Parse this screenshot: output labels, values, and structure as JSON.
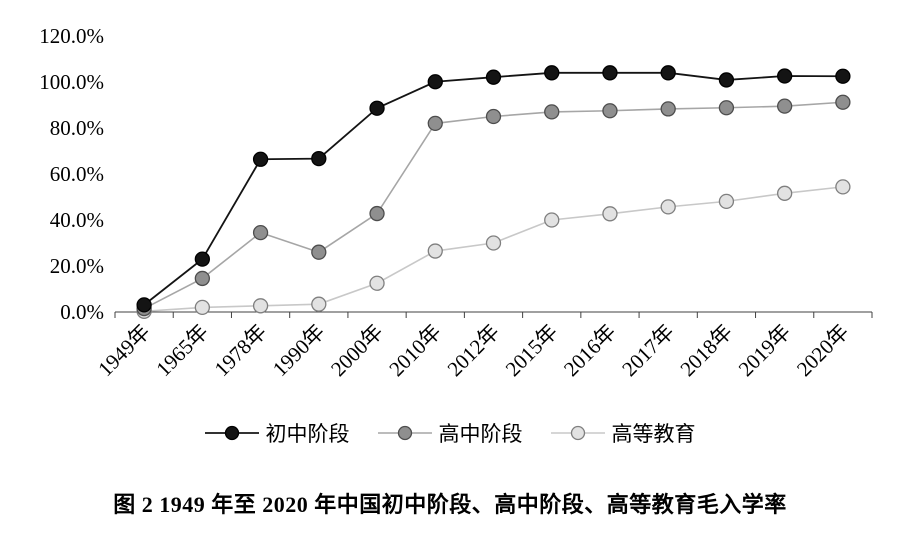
{
  "caption": "图 2  1949 年至 2020 年中国初中阶段、高中阶段、高等教育毛入学率",
  "chart_data": {
    "type": "line",
    "title": "",
    "xlabel": "",
    "ylabel": "",
    "grid": false,
    "legend_position": "bottom",
    "ylim": [
      0,
      120
    ],
    "ytick_step": 20,
    "ytick_labels": [
      "0.0%",
      "20.0%",
      "40.0%",
      "60.0%",
      "80.0%",
      "100.0%",
      "120.0%"
    ],
    "categories": [
      "1949年",
      "1965年",
      "1978年",
      "1990年",
      "2000年",
      "2010年",
      "2012年",
      "2015年",
      "2016年",
      "2017年",
      "2018年",
      "2019年",
      "2020年"
    ],
    "series": [
      {
        "name": "初中阶段",
        "line_color": "#141414",
        "line_width": 1.8,
        "marker_fill": "#141414",
        "marker_stroke": "#000000",
        "values": [
          3.1,
          23.0,
          66.4,
          66.7,
          88.6,
          100.1,
          102.1,
          104.0,
          104.0,
          104.0,
          100.9,
          102.6,
          102.5
        ]
      },
      {
        "name": "高中阶段",
        "line_color": "#a6a6a6",
        "line_width": 1.6,
        "marker_fill": "#8f8f8f",
        "marker_stroke": "#4d4d4d",
        "values": [
          1.5,
          14.6,
          34.5,
          26.0,
          42.8,
          82.0,
          85.0,
          87.0,
          87.5,
          88.3,
          88.8,
          89.5,
          91.2
        ]
      },
      {
        "name": "高等教育",
        "line_color": "#c8c8c8",
        "line_width": 1.6,
        "marker_fill": "#e2e2e2",
        "marker_stroke": "#7f7f7f",
        "values": [
          0.3,
          2.0,
          2.7,
          3.4,
          12.5,
          26.5,
          30.0,
          40.0,
          42.7,
          45.7,
          48.1,
          51.6,
          54.4
        ]
      }
    ]
  }
}
